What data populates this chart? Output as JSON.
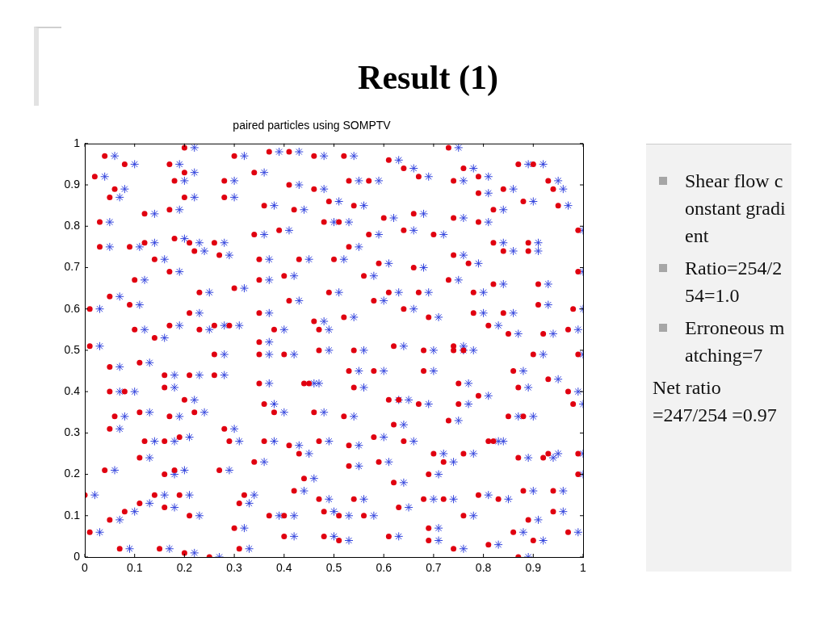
{
  "chart_data": {
    "type": "scatter",
    "title": "paired particles using SOMPTV",
    "annotations": [
      "Result (1)",
      "Shear flow constant gradient",
      "Ratio=254/254=1.0",
      "Erroneous matching=7",
      "Net ratio =247/254 =0.97"
    ],
    "xlim": [
      0,
      1
    ],
    "ylim": [
      0,
      1
    ],
    "xticks": [
      0,
      0.1,
      0.2,
      0.3,
      0.4,
      0.5,
      0.6,
      0.7,
      0.8,
      0.9,
      1
    ],
    "yticks": [
      0,
      0.1,
      0.2,
      0.3,
      0.4,
      0.5,
      0.6,
      0.7,
      0.8,
      0.9,
      1
    ],
    "grid": false,
    "legend": false,
    "series": [
      {
        "color": "#e00010",
        "marker": "circle",
        "x": [
          0.2,
          0.04,
          0.08,
          0.17,
          0.2,
          0.18,
          0.2,
          0.3,
          0.37,
          0.41,
          0.46,
          0.34,
          0.28,
          0.28,
          0.41,
          0.46,
          0.02,
          0.06,
          0.05,
          0.12,
          0.17,
          0.36,
          0.42,
          0.03,
          0.48,
          0.39,
          0.34,
          0.18,
          0.12,
          0.21,
          0.26,
          0.03,
          0.09,
          0.22,
          0.27,
          0.14,
          0.35,
          0.43,
          0.17,
          0.4,
          0.1,
          0.35,
          0.3,
          0.23,
          0.05,
          0.01,
          0.09,
          0.41,
          0.21,
          0.35,
          0.46,
          0.47,
          0.1,
          0.17,
          0.23,
          0.26,
          0.29,
          0.38,
          0.14,
          0.01,
          0.73,
          0.52,
          0.61,
          0.64,
          0.67,
          0.76,
          0.79,
          0.87,
          0.9,
          0.53,
          0.57,
          0.74,
          0.93,
          0.94,
          0.79,
          0.84,
          0.49,
          0.54,
          0.82,
          0.88,
          0.95,
          0.6,
          0.66,
          0.74,
          0.79,
          0.51,
          0.64,
          0.57,
          0.7,
          0.99,
          0.82,
          0.84,
          0.89,
          0.89,
          0.53,
          0.5,
          0.59,
          0.66,
          0.74,
          0.77,
          0.99,
          0.56,
          0.73,
          0.82,
          0.91,
          0.49,
          0.61,
          0.67,
          0.78,
          0.58,
          0.64,
          0.91,
          0.98,
          0.52,
          0.69,
          0.78,
          0.84,
          0.81,
          0.85,
          0.92,
          0.97,
          0.26,
          0.35,
          0.35,
          0.4,
          0.47,
          0.11,
          0.05,
          0.16,
          0.21,
          0.26,
          0.35,
          0.44,
          0.45,
          0.05,
          0.08,
          0.16,
          0.2,
          0.22,
          0.36,
          0.38,
          0.46,
          0.11,
          0.17,
          0.06,
          0.28,
          0.05,
          0.19,
          0.12,
          0.16,
          0.29,
          0.36,
          0.41,
          0.47,
          0.43,
          0.34,
          0.11,
          0.04,
          0.16,
          0.18,
          0.27,
          0.44,
          0.42,
          0.14,
          0.19,
          0.11,
          0.16,
          0.31,
          0.32,
          0.47,
          0.48,
          0.05,
          0.08,
          0.21,
          0.37,
          0.4,
          0.3,
          0.01,
          0.4,
          0.48,
          0.07,
          0.15,
          0.2,
          0.25,
          0.31,
          0.0,
          0.54,
          0.62,
          0.68,
          0.74,
          0.74,
          0.76,
          0.9,
          0.99,
          0.53,
          0.58,
          0.68,
          0.86,
          0.93,
          0.54,
          0.75,
          0.87,
          0.97,
          0.98,
          0.61,
          0.63,
          0.67,
          0.75,
          0.79,
          0.52,
          0.62,
          0.73,
          0.85,
          0.88,
          0.58,
          0.64,
          0.81,
          0.82,
          0.53,
          0.7,
          0.76,
          0.72,
          0.87,
          0.93,
          0.92,
          0.99,
          0.53,
          0.59,
          0.69,
          0.99,
          0.62,
          0.88,
          0.94,
          0.54,
          0.68,
          0.72,
          0.79,
          0.83,
          0.63,
          0.94,
          0.51,
          0.56,
          0.76,
          0.89,
          0.69,
          0.86,
          0.61,
          0.97,
          0.51,
          0.69,
          0.9,
          0.81,
          0.74,
          0.87
        ],
        "values": [
          0.99,
          0.97,
          0.95,
          0.95,
          0.93,
          0.91,
          0.87,
          0.97,
          0.98,
          0.98,
          0.97,
          0.93,
          0.91,
          0.87,
          0.9,
          0.89,
          0.92,
          0.89,
          0.87,
          0.83,
          0.84,
          0.85,
          0.84,
          0.81,
          0.81,
          0.79,
          0.78,
          0.77,
          0.76,
          0.76,
          0.76,
          0.75,
          0.75,
          0.74,
          0.73,
          0.72,
          0.72,
          0.72,
          0.69,
          0.68,
          0.67,
          0.67,
          0.65,
          0.64,
          0.63,
          0.6,
          0.61,
          0.62,
          0.59,
          0.59,
          0.57,
          0.55,
          0.55,
          0.56,
          0.55,
          0.56,
          0.56,
          0.55,
          0.53,
          0.51,
          0.99,
          0.97,
          0.96,
          0.94,
          0.92,
          0.94,
          0.92,
          0.95,
          0.95,
          0.91,
          0.91,
          0.91,
          0.91,
          0.89,
          0.88,
          0.89,
          0.86,
          0.85,
          0.84,
          0.86,
          0.85,
          0.82,
          0.83,
          0.82,
          0.81,
          0.81,
          0.79,
          0.78,
          0.78,
          0.79,
          0.76,
          0.74,
          0.76,
          0.74,
          0.75,
          0.72,
          0.71,
          0.7,
          0.73,
          0.71,
          0.69,
          0.68,
          0.67,
          0.66,
          0.66,
          0.64,
          0.64,
          0.64,
          0.64,
          0.62,
          0.6,
          0.61,
          0.6,
          0.58,
          0.58,
          0.59,
          0.59,
          0.56,
          0.54,
          0.54,
          0.55,
          0.49,
          0.52,
          0.49,
          0.49,
          0.5,
          0.47,
          0.46,
          0.44,
          0.44,
          0.44,
          0.42,
          0.42,
          0.42,
          0.4,
          0.4,
          0.41,
          0.38,
          0.35,
          0.37,
          0.35,
          0.35,
          0.35,
          0.34,
          0.34,
          0.31,
          0.31,
          0.29,
          0.28,
          0.28,
          0.28,
          0.28,
          0.27,
          0.28,
          0.25,
          0.23,
          0.24,
          0.21,
          0.2,
          0.21,
          0.21,
          0.19,
          0.16,
          0.15,
          0.15,
          0.13,
          0.12,
          0.13,
          0.15,
          0.14,
          0.11,
          0.09,
          0.11,
          0.1,
          0.1,
          0.1,
          0.07,
          0.06,
          0.05,
          0.05,
          0.02,
          0.02,
          0.01,
          0.0,
          0.02,
          0.15,
          0.5,
          0.51,
          0.5,
          0.51,
          0.5,
          0.5,
          0.49,
          0.49,
          0.45,
          0.45,
          0.45,
          0.45,
          0.43,
          0.41,
          0.42,
          0.41,
          0.4,
          0.37,
          0.38,
          0.38,
          0.37,
          0.37,
          0.39,
          0.34,
          0.32,
          0.33,
          0.34,
          0.34,
          0.29,
          0.28,
          0.28,
          0.28,
          0.27,
          0.25,
          0.25,
          0.23,
          0.24,
          0.25,
          0.24,
          0.25,
          0.22,
          0.23,
          0.2,
          0.2,
          0.18,
          0.16,
          0.16,
          0.14,
          0.14,
          0.14,
          0.15,
          0.14,
          0.12,
          0.11,
          0.1,
          0.1,
          0.1,
          0.09,
          0.07,
          0.06,
          0.05,
          0.06,
          0.04,
          0.04,
          0.04,
          0.03,
          0.02,
          0.0
        ]
      },
      {
        "color": "#3344dd",
        "marker": "cross",
        "x": [
          0.22,
          0.06,
          0.1,
          0.19,
          0.22,
          0.2,
          0.22,
          0.32,
          0.39,
          0.43,
          0.48,
          0.36,
          0.3,
          0.3,
          0.43,
          0.48,
          0.04,
          0.08,
          0.07,
          0.14,
          0.19,
          0.38,
          0.44,
          0.05,
          0.5,
          0.41,
          0.36,
          0.2,
          0.14,
          0.23,
          0.28,
          0.05,
          0.11,
          0.24,
          0.29,
          0.16,
          0.37,
          0.45,
          0.19,
          0.42,
          0.12,
          0.37,
          0.32,
          0.25,
          0.07,
          0.03,
          0.11,
          0.43,
          0.23,
          0.37,
          0.48,
          0.49,
          0.12,
          0.19,
          0.25,
          0.28,
          0.31,
          0.4,
          0.16,
          0.03,
          0.75,
          0.54,
          0.63,
          0.66,
          0.69,
          0.78,
          0.81,
          0.89,
          0.92,
          0.55,
          0.59,
          0.76,
          0.95,
          0.96,
          0.81,
          0.86,
          0.51,
          0.56,
          0.84,
          0.9,
          0.97,
          0.62,
          0.68,
          0.76,
          0.81,
          0.53,
          0.66,
          0.59,
          0.72,
          1.0,
          0.84,
          0.86,
          0.91,
          0.91,
          0.55,
          0.52,
          0.61,
          0.68,
          0.76,
          0.79,
          1.0,
          0.58,
          0.75,
          0.84,
          0.93,
          0.51,
          0.63,
          0.69,
          0.8,
          0.6,
          0.66,
          0.93,
          1.0,
          0.54,
          0.71,
          0.8,
          0.86,
          0.83,
          0.87,
          0.94,
          0.99,
          0.28,
          0.37,
          0.37,
          0.42,
          0.49,
          0.13,
          0.07,
          0.18,
          0.23,
          0.28,
          0.37,
          0.46,
          0.47,
          0.07,
          0.1,
          0.18,
          0.22,
          0.24,
          0.38,
          0.4,
          0.48,
          0.13,
          0.19,
          0.08,
          0.3,
          0.07,
          0.21,
          0.14,
          0.18,
          0.31,
          0.38,
          0.43,
          0.49,
          0.45,
          0.36,
          0.13,
          0.06,
          0.18,
          0.2,
          0.29,
          0.46,
          0.44,
          0.16,
          0.21,
          0.13,
          0.18,
          0.33,
          0.34,
          0.49,
          0.5,
          0.07,
          0.1,
          0.23,
          0.39,
          0.42,
          0.32,
          0.03,
          0.42,
          0.5,
          0.09,
          0.17,
          0.22,
          0.27,
          0.33,
          0.02,
          0.56,
          0.64,
          0.7,
          0.76,
          0.76,
          0.78,
          0.92,
          1.0,
          0.55,
          0.6,
          0.7,
          0.88,
          0.95,
          0.56,
          0.77,
          0.89,
          0.99,
          1.0,
          0.63,
          0.65,
          0.69,
          0.77,
          0.81,
          0.54,
          0.64,
          0.75,
          0.87,
          0.9,
          0.6,
          0.66,
          0.83,
          0.84,
          0.55,
          0.72,
          0.78,
          0.74,
          0.89,
          0.95,
          0.94,
          1.0,
          0.55,
          0.61,
          0.71,
          1.0,
          0.64,
          0.9,
          0.96,
          0.56,
          0.7,
          0.74,
          0.81,
          0.85,
          0.65,
          0.96,
          0.53,
          0.58,
          0.78,
          0.91,
          0.71,
          0.88,
          0.63,
          0.99,
          0.53,
          0.71,
          0.92,
          0.83,
          0.76,
          0.89
        ],
        "values": [
          0.99,
          0.97,
          0.95,
          0.95,
          0.93,
          0.91,
          0.87,
          0.97,
          0.98,
          0.98,
          0.97,
          0.93,
          0.91,
          0.87,
          0.9,
          0.89,
          0.92,
          0.89,
          0.87,
          0.83,
          0.84,
          0.85,
          0.84,
          0.81,
          0.81,
          0.79,
          0.78,
          0.77,
          0.76,
          0.76,
          0.76,
          0.75,
          0.75,
          0.74,
          0.73,
          0.72,
          0.72,
          0.72,
          0.69,
          0.68,
          0.67,
          0.67,
          0.65,
          0.64,
          0.63,
          0.6,
          0.61,
          0.62,
          0.59,
          0.59,
          0.57,
          0.55,
          0.55,
          0.56,
          0.55,
          0.56,
          0.56,
          0.55,
          0.53,
          0.51,
          0.99,
          0.97,
          0.96,
          0.94,
          0.92,
          0.94,
          0.92,
          0.95,
          0.95,
          0.91,
          0.91,
          0.91,
          0.91,
          0.89,
          0.88,
          0.89,
          0.86,
          0.85,
          0.84,
          0.86,
          0.85,
          0.82,
          0.83,
          0.82,
          0.81,
          0.81,
          0.79,
          0.78,
          0.78,
          0.79,
          0.76,
          0.74,
          0.76,
          0.74,
          0.75,
          0.72,
          0.71,
          0.7,
          0.73,
          0.71,
          0.69,
          0.68,
          0.67,
          0.66,
          0.66,
          0.64,
          0.64,
          0.64,
          0.64,
          0.62,
          0.6,
          0.61,
          0.6,
          0.58,
          0.58,
          0.59,
          0.59,
          0.56,
          0.54,
          0.54,
          0.55,
          0.49,
          0.52,
          0.49,
          0.49,
          0.5,
          0.47,
          0.46,
          0.44,
          0.44,
          0.44,
          0.42,
          0.42,
          0.42,
          0.4,
          0.4,
          0.41,
          0.38,
          0.35,
          0.37,
          0.35,
          0.35,
          0.35,
          0.34,
          0.34,
          0.31,
          0.31,
          0.29,
          0.28,
          0.28,
          0.28,
          0.28,
          0.27,
          0.28,
          0.25,
          0.23,
          0.24,
          0.21,
          0.2,
          0.21,
          0.21,
          0.19,
          0.16,
          0.15,
          0.15,
          0.13,
          0.12,
          0.13,
          0.15,
          0.14,
          0.11,
          0.09,
          0.11,
          0.1,
          0.1,
          0.1,
          0.07,
          0.06,
          0.05,
          0.05,
          0.02,
          0.02,
          0.01,
          0.0,
          0.02,
          0.15,
          0.5,
          0.51,
          0.5,
          0.51,
          0.5,
          0.5,
          0.49,
          0.49,
          0.45,
          0.45,
          0.45,
          0.45,
          0.43,
          0.41,
          0.42,
          0.41,
          0.4,
          0.37,
          0.38,
          0.38,
          0.37,
          0.37,
          0.39,
          0.34,
          0.32,
          0.33,
          0.34,
          0.34,
          0.29,
          0.28,
          0.28,
          0.28,
          0.27,
          0.25,
          0.25,
          0.23,
          0.24,
          0.25,
          0.24,
          0.25,
          0.22,
          0.23,
          0.2,
          0.2,
          0.18,
          0.16,
          0.16,
          0.14,
          0.14,
          0.14,
          0.15,
          0.14,
          0.12,
          0.11,
          0.1,
          0.1,
          0.1,
          0.09,
          0.07,
          0.06,
          0.05,
          0.06,
          0.04,
          0.04,
          0.04,
          0.03,
          0.02,
          0.0
        ]
      }
    ]
  }
}
